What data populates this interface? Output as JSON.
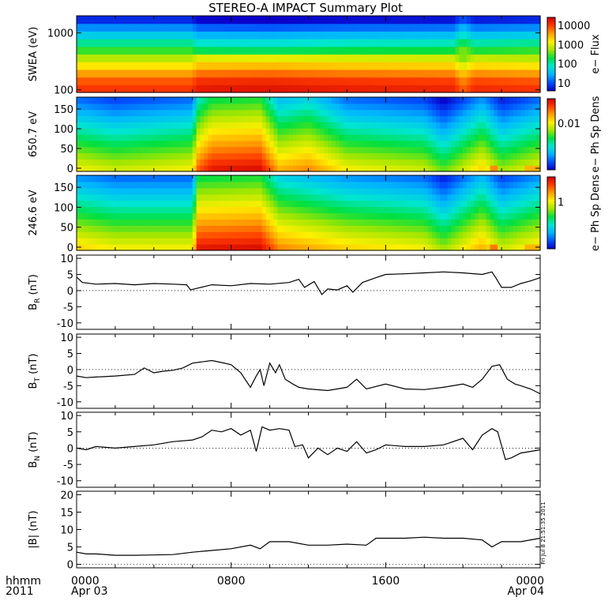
{
  "title": "STEREO-A IMPACT Summary Plot",
  "x_axis": {
    "row_label_1": "hhmm",
    "row_label_2": "2011",
    "ticks": [
      {
        "hour": 0,
        "label": "0000",
        "sublabel": "Apr 03"
      },
      {
        "hour": 8,
        "label": "0800",
        "sublabel": ""
      },
      {
        "hour": 16,
        "label": "1600",
        "sublabel": ""
      },
      {
        "hour": 24,
        "label": "0000",
        "sublabel": "Apr 04"
      }
    ],
    "xlim_hours": [
      0,
      24
    ]
  },
  "stamp": "Fri Jul 8 21:51:35 2011",
  "colors": {
    "spectrogram_scale": [
      "#0a00c8",
      "#0050ff",
      "#00b4ff",
      "#00e6d0",
      "#00e040",
      "#a0e600",
      "#fff000",
      "#ffa000",
      "#ff3c00",
      "#d20000"
    ],
    "line": "#000000"
  },
  "chart_data": [
    {
      "type": "heatmap",
      "ylabel": "SWEA (eV)",
      "y_scale": "log",
      "ylim": [
        90,
        2000
      ],
      "yticks": [
        {
          "value": 1000,
          "label": "1000"
        },
        {
          "value": 100,
          "label": "100"
        }
      ],
      "colorbar": {
        "label": "e− Flux",
        "scale": "log",
        "ticks": [
          "10000",
          "1000",
          "100",
          "10"
        ]
      },
      "bands_bottom_to_top": [
        0.9,
        0.86,
        0.78,
        0.68,
        0.58,
        0.48,
        0.38,
        0.28,
        0.18,
        0.06
      ],
      "time_modulation": [
        {
          "hour": 0,
          "level": 0.0
        },
        {
          "hour": 6,
          "level": 0.0
        },
        {
          "hour": 6.2,
          "level": 0.05
        },
        {
          "hour": 10,
          "level": 0.06
        },
        {
          "hour": 14,
          "level": 0.04
        },
        {
          "hour": 19.5,
          "level": 0.03
        },
        {
          "hour": 20,
          "level": -0.06
        },
        {
          "hour": 20.6,
          "level": 0.02
        },
        {
          "hour": 24,
          "level": 0.0
        }
      ]
    },
    {
      "type": "heatmap",
      "ylabel": "650.7 eV",
      "ylim": [
        -8,
        180
      ],
      "yticks": [
        {
          "value": 150,
          "label": "150"
        },
        {
          "value": 100,
          "label": "100"
        },
        {
          "value": 50,
          "label": "50"
        },
        {
          "value": 0,
          "label": "0"
        }
      ],
      "colorbar": {
        "label": "e− Ph Sp Dens",
        "scale": "log",
        "ticks": [
          "0.01"
        ]
      },
      "profile": [
        {
          "hour": 0,
          "level": 0.3
        },
        {
          "hour": 2,
          "level": 0.25
        },
        {
          "hour": 6,
          "level": 0.3
        },
        {
          "hour": 6.3,
          "level": 0.5
        },
        {
          "hour": 7,
          "level": 0.6
        },
        {
          "hour": 9.5,
          "level": 0.62
        },
        {
          "hour": 10.5,
          "level": 0.4
        },
        {
          "hour": 12,
          "level": 0.45
        },
        {
          "hour": 14,
          "level": 0.3
        },
        {
          "hour": 18,
          "level": 0.25
        },
        {
          "hour": 19,
          "level": 0.15
        },
        {
          "hour": 21,
          "level": 0.35
        },
        {
          "hour": 22,
          "level": 0.2
        },
        {
          "hour": 24,
          "level": 0.3
        }
      ],
      "hot_spots": [
        {
          "h0": 7.0,
          "h1": 8.0,
          "level": 0.85
        },
        {
          "h0": 8.5,
          "h1": 9.5,
          "level": 0.85
        },
        {
          "h0": 21.3,
          "h1": 21.8,
          "level": 0.8
        },
        {
          "h0": 23.3,
          "h1": 24.0,
          "level": 0.75
        }
      ]
    },
    {
      "type": "heatmap",
      "ylabel": "246.6 eV",
      "ylim": [
        -8,
        180
      ],
      "yticks": [
        {
          "value": 150,
          "label": "150"
        },
        {
          "value": 100,
          "label": "100"
        },
        {
          "value": 50,
          "label": "50"
        },
        {
          "value": 0,
          "label": "0"
        }
      ],
      "colorbar": {
        "label": "e− Ph Sp Dens",
        "scale": "log",
        "ticks": [
          "1"
        ]
      },
      "profile": [
        {
          "hour": 0,
          "level": 0.35
        },
        {
          "hour": 2,
          "level": 0.3
        },
        {
          "hour": 6,
          "level": 0.3
        },
        {
          "hour": 6.3,
          "level": 0.6
        },
        {
          "hour": 9.5,
          "level": 0.62
        },
        {
          "hour": 10.5,
          "level": 0.45
        },
        {
          "hour": 14,
          "level": 0.35
        },
        {
          "hour": 18,
          "level": 0.3
        },
        {
          "hour": 19,
          "level": 0.2
        },
        {
          "hour": 21,
          "level": 0.4
        },
        {
          "hour": 22,
          "level": 0.25
        },
        {
          "hour": 24,
          "level": 0.35
        }
      ],
      "hot_spots": [
        {
          "h0": 7.0,
          "h1": 8.0,
          "level": 0.85
        },
        {
          "h0": 8.5,
          "h1": 9.5,
          "level": 0.85
        },
        {
          "h0": 21.3,
          "h1": 21.8,
          "level": 0.82
        },
        {
          "h0": 23.3,
          "h1": 24.0,
          "level": 0.75
        }
      ]
    },
    {
      "type": "line",
      "ylabel_main": "B",
      "ylabel_sub": "R",
      "ylabel_unit": "(nT)",
      "ylim": [
        -12,
        11
      ],
      "yticks": [
        {
          "value": 10,
          "label": "10"
        },
        {
          "value": 5,
          "label": "5"
        },
        {
          "value": 0,
          "label": "0"
        },
        {
          "value": -5,
          "label": "-5"
        },
        {
          "value": -10,
          "label": "-10"
        }
      ],
      "x": [
        0,
        0.3,
        1,
        2,
        3,
        4,
        5,
        5.7,
        5.9,
        6.3,
        7,
        8,
        9,
        10,
        11,
        11.5,
        11.8,
        12.3,
        12.7,
        13,
        13.5,
        14,
        14.3,
        14.8,
        15.5,
        16,
        17,
        18,
        19,
        20,
        21,
        21.5,
        21.7,
        22,
        22.5,
        23,
        23.5,
        24
      ],
      "y": [
        4.2,
        2.5,
        2.0,
        2.2,
        1.8,
        2.2,
        2.0,
        1.8,
        0.2,
        0.8,
        1.8,
        1.5,
        2.2,
        2.0,
        2.5,
        3.5,
        1.0,
        2.8,
        -1.2,
        0.5,
        0.2,
        1.5,
        -0.5,
        2.5,
        4.0,
        5.0,
        5.2,
        5.5,
        5.8,
        5.5,
        5.0,
        5.8,
        4.0,
        1.0,
        1.0,
        2.2,
        3.0,
        4.0
      ]
    },
    {
      "type": "line",
      "ylabel_main": "B",
      "ylabel_sub": "T",
      "ylabel_unit": "(nT)",
      "ylim": [
        -12,
        11
      ],
      "yticks": [
        {
          "value": 10,
          "label": "10"
        },
        {
          "value": 5,
          "label": "5"
        },
        {
          "value": 0,
          "label": "0"
        },
        {
          "value": -5,
          "label": "-5"
        },
        {
          "value": -10,
          "label": "-10"
        }
      ],
      "x": [
        0,
        0.5,
        1,
        2,
        3,
        3.5,
        4,
        4.5,
        5,
        5.5,
        6,
        7,
        7.5,
        8,
        8.5,
        9,
        9.3,
        9.5,
        9.7,
        10,
        10.3,
        10.5,
        10.8,
        11.2,
        11.5,
        12,
        13,
        14,
        14.5,
        15,
        16,
        17,
        18,
        19,
        20,
        20.5,
        21,
        21.5,
        21.9,
        22.3,
        22.7,
        23,
        23.5,
        24
      ],
      "y": [
        -2.0,
        -2.5,
        -2.3,
        -2.0,
        -1.5,
        0.5,
        -1.0,
        -0.5,
        -0.2,
        0.5,
        2.0,
        2.8,
        2.2,
        1.5,
        -1.0,
        -5.5,
        -2.0,
        0.0,
        -5.0,
        2.0,
        -1.0,
        1.5,
        -3.0,
        -4.5,
        -5.5,
        -6.0,
        -6.5,
        -5.5,
        -3.0,
        -6.0,
        -4.5,
        -6.0,
        -6.2,
        -5.5,
        -4.5,
        -5.5,
        -3.0,
        1.0,
        1.5,
        -3.0,
        -4.5,
        -5.0,
        -6.0,
        -7.5
      ]
    },
    {
      "type": "line",
      "ylabel_main": "B",
      "ylabel_sub": "N",
      "ylabel_unit": "(nT)",
      "ylim": [
        -12,
        11
      ],
      "yticks": [
        {
          "value": 10,
          "label": "10"
        },
        {
          "value": 5,
          "label": "5"
        },
        {
          "value": 0,
          "label": "0"
        },
        {
          "value": -5,
          "label": "-5"
        },
        {
          "value": -10,
          "label": "-10"
        }
      ],
      "x": [
        0,
        0.5,
        1,
        2,
        3,
        4,
        5,
        6,
        6.5,
        7,
        7.5,
        8,
        8.5,
        9,
        9.3,
        9.6,
        10,
        10.5,
        11,
        11.3,
        11.7,
        12,
        12.5,
        13,
        13.5,
        14,
        14.5,
        15,
        15.5,
        16,
        17,
        18,
        19,
        20,
        20.5,
        21,
        21.5,
        21.8,
        22.2,
        22.5,
        23,
        23.5,
        24
      ],
      "y": [
        0.0,
        -0.5,
        0.5,
        0.0,
        0.5,
        1.0,
        2.0,
        2.5,
        3.5,
        5.5,
        5.0,
        6.0,
        4.0,
        5.5,
        -1.0,
        6.5,
        5.5,
        6.0,
        5.5,
        0.5,
        1.0,
        -3.0,
        0.0,
        -2.0,
        0.0,
        -1.0,
        2.0,
        -1.5,
        -0.5,
        1.0,
        0.5,
        0.5,
        1.0,
        3.0,
        -0.5,
        4.0,
        6.0,
        5.0,
        -3.5,
        -3.0,
        -1.5,
        -1.0,
        -0.5
      ]
    },
    {
      "type": "line",
      "ylabel_main": "|B|",
      "ylabel_sub": "",
      "ylabel_unit": "(nT)",
      "ylim": [
        -1,
        21
      ],
      "yticks": [
        {
          "value": 20,
          "label": "20"
        },
        {
          "value": 15,
          "label": "15"
        },
        {
          "value": 10,
          "label": "10"
        },
        {
          "value": 5,
          "label": "5"
        },
        {
          "value": 0,
          "label": "0"
        }
      ],
      "x": [
        0,
        0.5,
        1,
        2,
        3,
        4,
        5,
        6,
        7,
        8,
        9,
        9.5,
        10,
        11,
        12,
        13,
        14,
        15,
        15.5,
        16,
        17,
        18,
        19,
        20,
        21,
        21.5,
        22,
        22.5,
        23,
        24
      ],
      "y": [
        3.5,
        3.0,
        3.0,
        2.6,
        2.6,
        2.7,
        2.8,
        3.5,
        4.0,
        4.5,
        5.5,
        4.5,
        6.5,
        6.5,
        5.5,
        5.5,
        5.8,
        5.5,
        7.5,
        7.5,
        7.5,
        7.8,
        7.5,
        7.5,
        7.0,
        5.0,
        6.5,
        6.5,
        6.5,
        7.5
      ]
    }
  ]
}
